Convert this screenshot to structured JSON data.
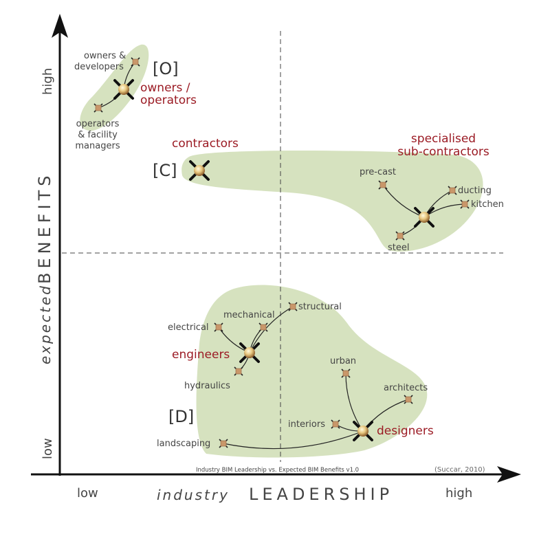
{
  "axes": {
    "y_title_italic": "expected",
    "y_title_caps": "BENEFITS",
    "x_title_italic": "industry",
    "x_title_caps": "LEADERSHIP",
    "y_high": "high",
    "y_low": "low",
    "x_low": "low",
    "x_high": "high"
  },
  "caption": "Industry BIM Leadership vs. Expected BIM Benefits v1.0",
  "credit": "(Succar, 2010)",
  "groups": {
    "owners": {
      "bracket": "[O]",
      "title_line1": "owners /",
      "title_line2": "operators",
      "members": [
        "owners &",
        "developers",
        "operators",
        "& facility",
        "managers"
      ]
    },
    "contractors": {
      "bracket": "[C]",
      "title": "contractors"
    },
    "subcontractors": {
      "title_line1": "specialised",
      "title_line2": "sub-contractors",
      "members": [
        "pre-cast",
        "ducting",
        "kitchen",
        "steel"
      ]
    },
    "engineers": {
      "title": "engineers",
      "members": [
        "structural",
        "mechanical",
        "electrical",
        "hydraulics"
      ]
    },
    "designers": {
      "bracket": "[D]",
      "title": "designers",
      "members": [
        "urban",
        "architects",
        "interiors",
        "landscaping"
      ]
    }
  },
  "colors": {
    "blob": "#d6e2bf",
    "accent": "#9b1b24"
  }
}
